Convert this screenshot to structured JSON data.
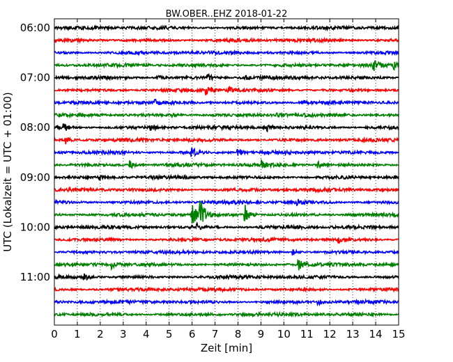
{
  "chart_data": {
    "type": "line",
    "title": "BW.OBER..EHZ 2018-01-22",
    "xlabel": "Zeit  [min]",
    "ylabel": "UTC (Lokalzeit = UTC + 01:00)",
    "xlim": [
      0,
      15
    ],
    "x_ticks": [
      0,
      1,
      2,
      3,
      4,
      5,
      6,
      7,
      8,
      9,
      10,
      11,
      12,
      13,
      14,
      15
    ],
    "y_ticks": [
      "06:00",
      "07:00",
      "08:00",
      "09:00",
      "10:00",
      "11:00"
    ],
    "grid": "vertical dotted",
    "trace_interval_minutes": 15,
    "trace_color_cycle": [
      "#000000",
      "#ff0000",
      "#0000ff",
      "#008000"
    ],
    "traces": [
      {
        "start": "06:00",
        "color": "#000000",
        "events": []
      },
      {
        "start": "06:15",
        "color": "#ff0000",
        "events": []
      },
      {
        "start": "06:30",
        "color": "#0000ff",
        "events": []
      },
      {
        "start": "06:45",
        "color": "#008000",
        "events": [
          {
            "t": 13.9,
            "amp": 0.5
          },
          {
            "t": 14.8,
            "amp": 0.45
          }
        ]
      },
      {
        "start": "07:00",
        "color": "#000000",
        "events": [
          {
            "t": 4.5,
            "amp": 0.3
          },
          {
            "t": 6.7,
            "amp": 0.3
          },
          {
            "t": 8.2,
            "amp": 0.3
          }
        ]
      },
      {
        "start": "07:15",
        "color": "#ff0000",
        "events": [
          {
            "t": 6.6,
            "amp": 0.45
          },
          {
            "t": 7.6,
            "amp": 0.4
          }
        ]
      },
      {
        "start": "07:30",
        "color": "#0000ff",
        "events": [
          {
            "t": 4.3,
            "amp": 0.3
          },
          {
            "t": 10.8,
            "amp": 0.3
          }
        ]
      },
      {
        "start": "07:45",
        "color": "#008000",
        "events": [
          {
            "t": 9.7,
            "amp": 0.35
          },
          {
            "t": 5.1,
            "amp": 0.3
          }
        ]
      },
      {
        "start": "08:00",
        "color": "#000000",
        "events": [
          {
            "t": 0.4,
            "amp": 0.5
          },
          {
            "t": 4.2,
            "amp": 0.35
          },
          {
            "t": 9.3,
            "amp": 0.35
          }
        ]
      },
      {
        "start": "08:15",
        "color": "#ff0000",
        "events": [
          {
            "t": 0.5,
            "amp": 0.35
          }
        ]
      },
      {
        "start": "08:30",
        "color": "#0000ff",
        "events": [
          {
            "t": 6.0,
            "amp": 0.5
          },
          {
            "t": 8.0,
            "amp": 0.45
          }
        ]
      },
      {
        "start": "08:45",
        "color": "#008000",
        "events": [
          {
            "t": 3.3,
            "amp": 0.4
          },
          {
            "t": 9.0,
            "amp": 0.35
          },
          {
            "t": 11.5,
            "amp": 0.35
          }
        ]
      },
      {
        "start": "09:00",
        "color": "#000000",
        "events": [
          {
            "t": 2.0,
            "amp": 0.3
          }
        ]
      },
      {
        "start": "09:15",
        "color": "#ff0000",
        "events": []
      },
      {
        "start": "09:30",
        "color": "#0000ff",
        "events": [
          {
            "t": 10.6,
            "amp": 0.3
          }
        ]
      },
      {
        "start": "09:45",
        "color": "#008000",
        "events": [
          {
            "t": 6.0,
            "amp": 1.2
          },
          {
            "t": 6.35,
            "amp": 1.6
          },
          {
            "t": 8.3,
            "amp": 1.1
          }
        ]
      },
      {
        "start": "10:00",
        "color": "#000000",
        "events": [
          {
            "t": 6.2,
            "amp": 0.35
          }
        ]
      },
      {
        "start": "10:15",
        "color": "#ff0000",
        "events": [
          {
            "t": 12.4,
            "amp": 0.3
          }
        ]
      },
      {
        "start": "10:30",
        "color": "#0000ff",
        "events": [
          {
            "t": 10.4,
            "amp": 0.3
          }
        ]
      },
      {
        "start": "10:45",
        "color": "#008000",
        "events": [
          {
            "t": 2.5,
            "amp": 0.35
          },
          {
            "t": 10.6,
            "amp": 0.7
          }
        ]
      },
      {
        "start": "11:00",
        "color": "#000000",
        "events": [
          {
            "t": 1.3,
            "amp": 0.3
          }
        ]
      },
      {
        "start": "11:15",
        "color": "#ff0000",
        "events": []
      },
      {
        "start": "11:30",
        "color": "#0000ff",
        "events": [
          {
            "t": 11.5,
            "amp": 0.3
          }
        ]
      },
      {
        "start": "11:45",
        "color": "#008000",
        "events": []
      }
    ]
  }
}
